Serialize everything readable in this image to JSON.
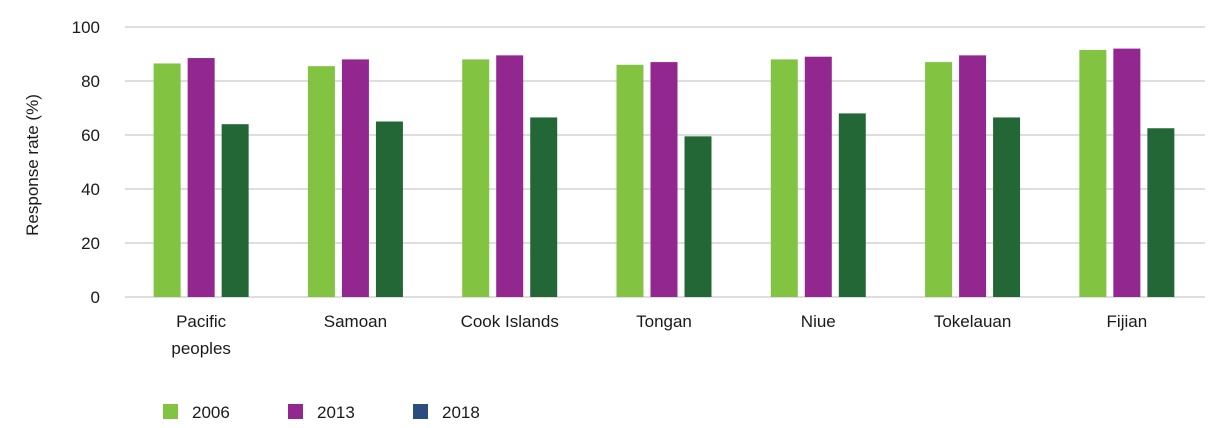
{
  "chart_data": {
    "type": "bar",
    "title": "",
    "xlabel": "",
    "ylabel": "Response rate (%)",
    "ylim": [
      0,
      100
    ],
    "yticks": [
      0,
      20,
      40,
      60,
      80,
      100
    ],
    "grid": true,
    "legend_position": "bottom-left",
    "categories": [
      [
        "Pacific",
        "peoples"
      ],
      [
        "Samoan"
      ],
      [
        "Cook Islands"
      ],
      [
        "Tongan"
      ],
      [
        "Niue"
      ],
      [
        "Tokelauan"
      ],
      [
        "Fijian"
      ]
    ],
    "series": [
      {
        "name": "2006",
        "color": "#82c341",
        "values": [
          86.5,
          85.5,
          88,
          86,
          88,
          87,
          91.5
        ]
      },
      {
        "name": "2013",
        "color": "#92278f",
        "values": [
          88.5,
          88,
          89.5,
          87,
          89,
          89.5,
          92
        ]
      },
      {
        "name": "2018",
        "color": "#246737",
        "legend_color": "#2b4c7e",
        "values": [
          64,
          65,
          66.5,
          59.5,
          68,
          66.5,
          62.5
        ]
      }
    ]
  }
}
